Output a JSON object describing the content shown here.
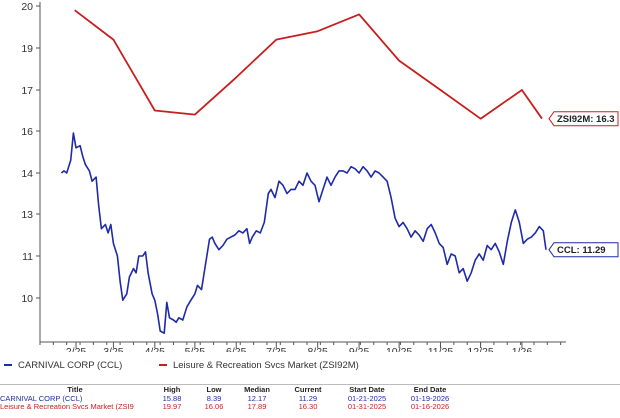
{
  "colors": {
    "ccl": "#1f2aa8",
    "zsi": "#c81e1e",
    "axis": "#555555"
  },
  "chart_data": {
    "type": "line",
    "y_ticks": [
      "20",
      "19",
      "17",
      "16",
      "14",
      "13",
      "11",
      "10"
    ],
    "x_ticks": [
      "2/25",
      "3/25",
      "4/25",
      "5/25",
      "6/25",
      "7/25",
      "8/25",
      "9/25",
      "10/25",
      "11/25",
      "12/25",
      "1/26"
    ],
    "series": [
      {
        "name": "CARNIVAL CORP (CCL)",
        "end_label": "CCL: 11.29",
        "points": [
          [
            "2025-01-21",
            14.0
          ],
          [
            "2025-01-23",
            14.1
          ],
          [
            "2025-01-25",
            14.0
          ],
          [
            "2025-01-28",
            14.6
          ],
          [
            "2025-01-30",
            15.9
          ],
          [
            "2025-02-01",
            15.2
          ],
          [
            "2025-02-04",
            15.3
          ],
          [
            "2025-02-06",
            14.8
          ],
          [
            "2025-02-08",
            14.4
          ],
          [
            "2025-02-11",
            14.1
          ],
          [
            "2025-02-13",
            13.8
          ],
          [
            "2025-02-16",
            13.9
          ],
          [
            "2025-02-18",
            13.2
          ],
          [
            "2025-02-20",
            12.3
          ],
          [
            "2025-02-23",
            12.5
          ],
          [
            "2025-02-25",
            12.1
          ],
          [
            "2025-02-27",
            12.5
          ],
          [
            "2025-03-01",
            11.6
          ],
          [
            "2025-03-04",
            11.0
          ],
          [
            "2025-03-06",
            10.4
          ],
          [
            "2025-03-08",
            9.9
          ],
          [
            "2025-03-11",
            10.1
          ],
          [
            "2025-03-13",
            10.5
          ],
          [
            "2025-03-16",
            10.7
          ],
          [
            "2025-03-18",
            10.6
          ],
          [
            "2025-03-20",
            11.0
          ],
          [
            "2025-03-23",
            11.0
          ],
          [
            "2025-03-25",
            11.2
          ],
          [
            "2025-03-27",
            10.6
          ],
          [
            "2025-03-30",
            10.1
          ],
          [
            "2025-04-01",
            9.9
          ],
          [
            "2025-04-03",
            9.3
          ],
          [
            "2025-04-05",
            8.5
          ],
          [
            "2025-04-08",
            8.4
          ],
          [
            "2025-04-10",
            9.8
          ],
          [
            "2025-04-12",
            9.1
          ],
          [
            "2025-04-15",
            9.0
          ],
          [
            "2025-04-17",
            8.9
          ],
          [
            "2025-04-19",
            9.1
          ],
          [
            "2025-04-22",
            9.0
          ],
          [
            "2025-04-25",
            9.6
          ],
          [
            "2025-04-28",
            9.9
          ],
          [
            "2025-05-01",
            10.1
          ],
          [
            "2025-05-03",
            10.3
          ],
          [
            "2025-05-06",
            10.2
          ],
          [
            "2025-05-09",
            10.8
          ],
          [
            "2025-05-12",
            11.8
          ],
          [
            "2025-05-14",
            11.9
          ],
          [
            "2025-05-16",
            11.6
          ],
          [
            "2025-05-19",
            11.3
          ],
          [
            "2025-05-22",
            11.5
          ],
          [
            "2025-05-25",
            11.8
          ],
          [
            "2025-05-28",
            11.9
          ],
          [
            "2025-05-31",
            12.0
          ],
          [
            "2025-06-03",
            12.2
          ],
          [
            "2025-06-06",
            12.1
          ],
          [
            "2025-06-09",
            12.3
          ],
          [
            "2025-06-11",
            11.6
          ],
          [
            "2025-06-13",
            11.9
          ],
          [
            "2025-06-16",
            12.2
          ],
          [
            "2025-06-19",
            12.1
          ],
          [
            "2025-06-22",
            12.6
          ],
          [
            "2025-06-25",
            13.5
          ],
          [
            "2025-06-27",
            13.6
          ],
          [
            "2025-06-30",
            13.4
          ],
          [
            "2025-07-03",
            13.8
          ],
          [
            "2025-07-06",
            13.7
          ],
          [
            "2025-07-09",
            13.5
          ],
          [
            "2025-07-12",
            13.6
          ],
          [
            "2025-07-15",
            13.6
          ],
          [
            "2025-07-18",
            13.8
          ],
          [
            "2025-07-21",
            13.7
          ],
          [
            "2025-07-24",
            14.0
          ],
          [
            "2025-07-27",
            13.8
          ],
          [
            "2025-07-30",
            13.7
          ],
          [
            "2025-08-02",
            13.3
          ],
          [
            "2025-08-05",
            13.6
          ],
          [
            "2025-08-08",
            13.9
          ],
          [
            "2025-08-11",
            13.7
          ],
          [
            "2025-08-14",
            13.9
          ],
          [
            "2025-08-17",
            14.1
          ],
          [
            "2025-08-20",
            14.1
          ],
          [
            "2025-08-23",
            14.0
          ],
          [
            "2025-08-26",
            14.3
          ],
          [
            "2025-08-29",
            14.2
          ],
          [
            "2025-09-01",
            14.0
          ],
          [
            "2025-09-04",
            14.3
          ],
          [
            "2025-09-07",
            14.1
          ],
          [
            "2025-09-10",
            13.9
          ],
          [
            "2025-09-13",
            14.1
          ],
          [
            "2025-09-16",
            14.0
          ],
          [
            "2025-09-19",
            13.9
          ],
          [
            "2025-09-22",
            13.8
          ],
          [
            "2025-09-25",
            13.4
          ],
          [
            "2025-09-28",
            12.8
          ],
          [
            "2025-10-01",
            12.4
          ],
          [
            "2025-10-04",
            12.6
          ],
          [
            "2025-10-07",
            12.3
          ],
          [
            "2025-10-10",
            11.9
          ],
          [
            "2025-10-13",
            12.2
          ],
          [
            "2025-10-16",
            12.0
          ],
          [
            "2025-10-19",
            11.7
          ],
          [
            "2025-10-22",
            12.3
          ],
          [
            "2025-10-25",
            12.5
          ],
          [
            "2025-10-28",
            12.1
          ],
          [
            "2025-10-31",
            11.6
          ],
          [
            "2025-11-03",
            11.4
          ],
          [
            "2025-11-06",
            10.8
          ],
          [
            "2025-11-09",
            11.1
          ],
          [
            "2025-11-12",
            11.0
          ],
          [
            "2025-11-15",
            10.6
          ],
          [
            "2025-11-18",
            10.7
          ],
          [
            "2025-11-21",
            10.4
          ],
          [
            "2025-11-24",
            10.6
          ],
          [
            "2025-11-27",
            10.9
          ],
          [
            "2025-11-30",
            11.1
          ],
          [
            "2025-12-03",
            10.9
          ],
          [
            "2025-12-06",
            11.5
          ],
          [
            "2025-12-09",
            11.3
          ],
          [
            "2025-12-12",
            11.6
          ],
          [
            "2025-12-15",
            11.2
          ],
          [
            "2025-12-18",
            10.8
          ],
          [
            "2025-12-21",
            11.7
          ],
          [
            "2025-12-24",
            12.6
          ],
          [
            "2025-12-27",
            13.1
          ],
          [
            "2025-12-30",
            12.6
          ],
          [
            "2026-01-02",
            11.6
          ],
          [
            "2026-01-05",
            11.8
          ],
          [
            "2026-01-08",
            11.9
          ],
          [
            "2026-01-11",
            12.1
          ],
          [
            "2026-01-14",
            12.4
          ],
          [
            "2026-01-17",
            12.2
          ],
          [
            "2026-01-19",
            11.3
          ]
        ]
      },
      {
        "name": "Leisure & Recreation Svcs Market (ZSI92M)",
        "end_label": "ZSI92M: 16.3",
        "points": [
          [
            "2025-01-31",
            19.9
          ],
          [
            "2025-03-01",
            19.2
          ],
          [
            "2025-04-01",
            16.5
          ],
          [
            "2025-05-01",
            16.4
          ],
          [
            "2025-06-01",
            17.6
          ],
          [
            "2025-07-01",
            19.2
          ],
          [
            "2025-08-01",
            19.4
          ],
          [
            "2025-09-01",
            19.8
          ],
          [
            "2025-10-01",
            18.4
          ],
          [
            "2025-11-01",
            17.0
          ],
          [
            "2025-12-01",
            16.3
          ],
          [
            "2026-01-01",
            17.0
          ],
          [
            "2026-01-16",
            16.3
          ]
        ]
      }
    ]
  },
  "legend": {
    "ccl": "CARNIVAL CORP (CCL)",
    "zsi": "Leisure & Recreation Svcs Market (ZSI92M)"
  },
  "stats": {
    "headers": [
      "Title",
      "High",
      "Low",
      "Median",
      "Current",
      "Start Date",
      "End Date"
    ],
    "rows": [
      [
        "CARNIVAL CORP (CCL)",
        "15.88",
        "8.39",
        "12.17",
        "11.29",
        "01-21-2025",
        "01-19-2026"
      ],
      [
        "Leisure & Recreation Svcs Market (ZSI9",
        "19.97",
        "16.06",
        "17.89",
        "16.30",
        "01-31-2025",
        "01-16-2026"
      ]
    ]
  }
}
